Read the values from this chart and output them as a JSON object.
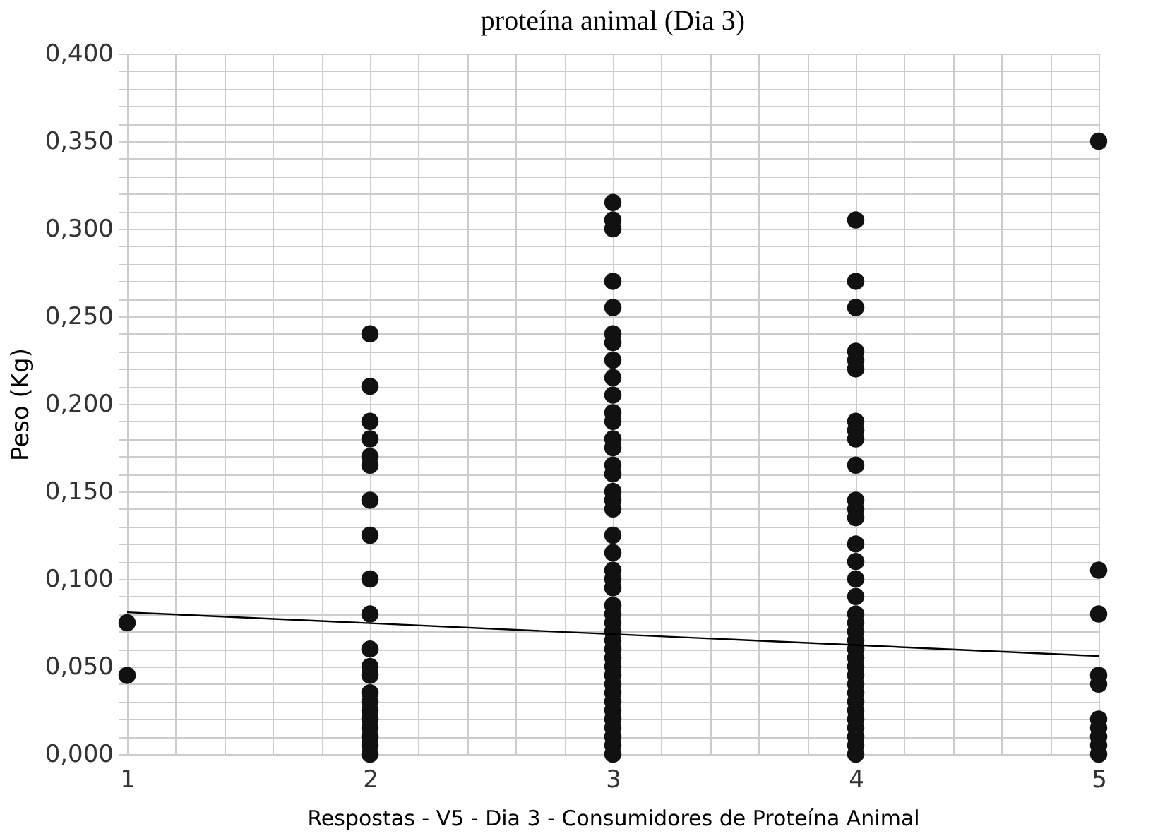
{
  "chart_data": {
    "type": "scatter",
    "title": "proteína animal (Dia 3)",
    "xlabel": "Respostas - V5 - Dia 3 - Consumidores de Proteína Animal",
    "ylabel": "Peso (Kg)",
    "xlim": [
      1,
      5
    ],
    "xticks": [
      1,
      {
        "value": 1.2,
        "label": null
      },
      {
        "value": 1.4,
        "label": null
      },
      {
        "value": 1.6,
        "label": null
      },
      {
        "value": 1.8,
        "label": null
      },
      2,
      {
        "value": 2.2,
        "label": null
      },
      {
        "value": 2.4,
        "label": null
      },
      {
        "value": 2.6,
        "label": null
      },
      {
        "value": 2.8,
        "label": null
      },
      3,
      {
        "value": 3.2,
        "label": null
      },
      {
        "value": 3.4,
        "label": null
      },
      {
        "value": 3.6,
        "label": null
      },
      {
        "value": 3.8,
        "label": null
      },
      4,
      {
        "value": 4.2,
        "label": null
      },
      {
        "value": 4.4,
        "label": null
      },
      {
        "value": 4.6,
        "label": null
      },
      {
        "value": 4.8,
        "label": null
      },
      5
    ],
    "ylim": [
      0,
      0.4
    ],
    "yticks": [
      {
        "value": 0,
        "label": "0,000"
      },
      {
        "value": 0.01,
        "label": null
      },
      {
        "value": 0.02,
        "label": null
      },
      {
        "value": 0.03,
        "label": null
      },
      {
        "value": 0.04,
        "label": null
      },
      {
        "value": 0.05,
        "label": "0,050"
      },
      {
        "value": 0.06,
        "label": null
      },
      {
        "value": 0.07,
        "label": null
      },
      {
        "value": 0.08,
        "label": null
      },
      {
        "value": 0.09,
        "label": null
      },
      {
        "value": 0.1,
        "label": "0,100"
      },
      {
        "value": 0.11,
        "label": null
      },
      {
        "value": 0.12,
        "label": null
      },
      {
        "value": 0.13,
        "label": null
      },
      {
        "value": 0.14,
        "label": null
      },
      {
        "value": 0.15,
        "label": "0,150"
      },
      {
        "value": 0.16,
        "label": null
      },
      {
        "value": 0.17,
        "label": null
      },
      {
        "value": 0.18,
        "label": null
      },
      {
        "value": 0.19,
        "label": null
      },
      {
        "value": 0.2,
        "label": "0,200"
      },
      {
        "value": 0.21,
        "label": null
      },
      {
        "value": 0.22,
        "label": null
      },
      {
        "value": 0.23,
        "label": null
      },
      {
        "value": 0.24,
        "label": null
      },
      {
        "value": 0.25,
        "label": "0,250"
      },
      {
        "value": 0.26,
        "label": null
      },
      {
        "value": 0.27,
        "label": null
      },
      {
        "value": 0.28,
        "label": null
      },
      {
        "value": 0.29,
        "label": null
      },
      {
        "value": 0.3,
        "label": "0,300"
      },
      {
        "value": 0.31,
        "label": null
      },
      {
        "value": 0.32,
        "label": null
      },
      {
        "value": 0.33,
        "label": null
      },
      {
        "value": 0.34,
        "label": null
      },
      {
        "value": 0.35,
        "label": "0,350"
      },
      {
        "value": 0.36,
        "label": null
      },
      {
        "value": 0.37,
        "label": null
      },
      {
        "value": 0.38,
        "label": null
      },
      {
        "value": 0.39,
        "label": null
      },
      {
        "value": 0.4,
        "label": "0,400"
      }
    ],
    "grid": true,
    "series": [
      {
        "marker": "circle",
        "color": "#111111",
        "x": [
          1,
          1,
          2,
          2,
          2,
          2,
          2,
          2,
          2,
          2,
          2,
          2,
          2,
          2,
          2,
          2,
          2,
          2,
          2,
          2,
          2,
          2,
          2,
          3,
          3,
          3,
          3,
          3,
          3,
          3,
          3,
          3,
          3,
          3,
          3,
          3,
          3,
          3,
          3,
          3,
          3,
          3,
          3,
          3,
          3,
          3,
          3,
          3,
          3,
          3,
          3,
          3,
          3,
          3,
          3,
          3,
          3,
          3,
          3,
          3,
          3,
          3,
          3,
          3,
          3,
          4,
          4,
          4,
          4,
          4,
          4,
          4,
          4,
          4,
          4,
          4,
          4,
          4,
          4,
          4,
          4,
          4,
          4,
          4,
          4,
          4,
          4,
          4,
          4,
          4,
          4,
          4,
          4,
          4,
          4,
          4,
          4,
          4,
          4,
          5,
          5,
          5,
          5,
          5,
          5,
          5,
          5,
          5,
          5
        ],
        "values": [
          0.075,
          0.045,
          0.24,
          0.21,
          0.19,
          0.18,
          0.17,
          0.165,
          0.145,
          0.125,
          0.1,
          0.08,
          0.06,
          0.05,
          0.045,
          0.035,
          0.03,
          0.025,
          0.02,
          0.015,
          0.01,
          0.005,
          0,
          0.315,
          0.305,
          0.3,
          0.27,
          0.255,
          0.24,
          0.235,
          0.225,
          0.215,
          0.205,
          0.195,
          0.19,
          0.18,
          0.175,
          0.165,
          0.16,
          0.15,
          0.145,
          0.14,
          0.125,
          0.115,
          0.105,
          0.1,
          0.095,
          0.085,
          0.08,
          0.075,
          0.07,
          0.065,
          0.06,
          0.055,
          0.05,
          0.045,
          0.04,
          0.035,
          0.03,
          0.025,
          0.02,
          0.015,
          0.01,
          0.005,
          0,
          0.305,
          0.27,
          0.255,
          0.23,
          0.225,
          0.22,
          0.19,
          0.185,
          0.18,
          0.165,
          0.145,
          0.14,
          0.135,
          0.12,
          0.11,
          0.1,
          0.09,
          0.08,
          0.075,
          0.07,
          0.065,
          0.06,
          0.055,
          0.05,
          0.045,
          0.04,
          0.035,
          0.03,
          0.025,
          0.02,
          0.015,
          0.01,
          0.005,
          0,
          0.35,
          0.105,
          0.08,
          0.045,
          0.04,
          0.02,
          0.015,
          0.01,
          0.005,
          0
        ]
      },
      {
        "type": "line",
        "color": "#000000",
        "x": [
          1,
          5
        ],
        "values": [
          0.081,
          0.056
        ],
        "line_style": "solid",
        "marker": "none"
      }
    ]
  }
}
